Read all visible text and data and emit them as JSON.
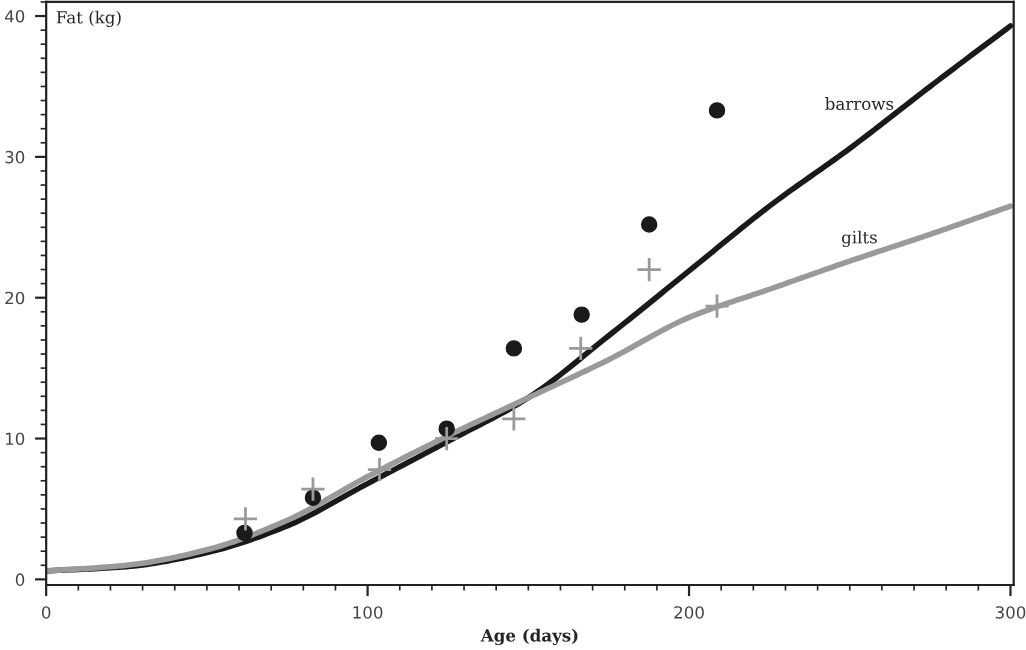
{
  "chart_data": {
    "type": "line",
    "xlabel": "Age (days)",
    "ylabel": "Fat (kg)",
    "xlim": [
      0,
      301
    ],
    "ylim": [
      -0.4,
      41
    ],
    "xticks": [
      0,
      100,
      200,
      300
    ],
    "yticks": [
      0,
      10,
      20,
      30,
      40
    ],
    "grid": false,
    "legend": false,
    "series": [
      {
        "name": "barrows",
        "color": "#1a1a1a",
        "x": [
          0,
          25,
          50,
          75,
          100,
          125,
          150,
          175,
          200,
          225,
          250,
          275,
          300
        ],
        "values": [
          0.6,
          0.9,
          1.9,
          3.8,
          6.8,
          9.8,
          12.9,
          17.3,
          21.9,
          26.5,
          30.6,
          35.0,
          39.3
        ]
      },
      {
        "name": "gilts",
        "color": "#9a9a9a",
        "x": [
          0,
          25,
          50,
          75,
          100,
          125,
          150,
          175,
          200,
          225,
          250,
          275,
          300
        ],
        "values": [
          0.6,
          1.0,
          2.1,
          4.2,
          7.3,
          10.2,
          12.9,
          15.6,
          18.6,
          20.6,
          22.6,
          24.5,
          26.5
        ]
      },
      {
        "type": "scatter",
        "marker": "circle",
        "color": "#1a1a1a",
        "x": [
          61.7,
          83,
          103.5,
          124.6,
          145.5,
          166.6,
          187.6,
          208.7
        ],
        "values": [
          3.3,
          5.8,
          9.7,
          10.7,
          16.4,
          18.8,
          25.2,
          33.3
        ]
      },
      {
        "type": "scatter",
        "marker": "cross",
        "color": "#9a9a9a",
        "x": [
          62,
          83,
          103.7,
          124.6,
          145.5,
          166.3,
          187.6,
          208.7
        ],
        "values": [
          4.3,
          6.4,
          7.8,
          10.0,
          11.4,
          16.4,
          22.0,
          19.4
        ]
      }
    ]
  }
}
